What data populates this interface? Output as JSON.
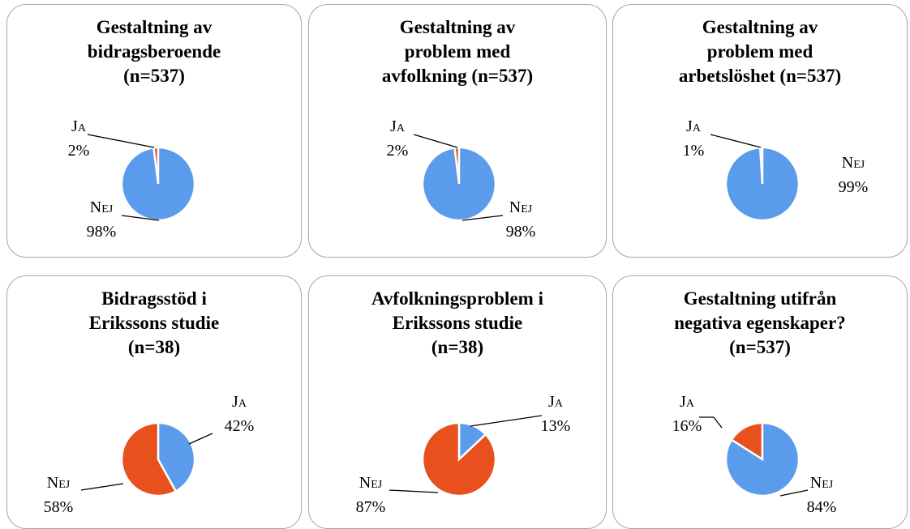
{
  "chart_data": [
    {
      "type": "pie",
      "title": "Gestaltning av\nbidragsberoende\n(n=537)",
      "categories": [
        "Ja",
        "Nej"
      ],
      "values": [
        2,
        98
      ],
      "value_labels": [
        "2%",
        "98%"
      ],
      "colors": [
        "#e8501e",
        "#5b9bec"
      ]
    },
    {
      "type": "pie",
      "title": "Gestaltning av\nproblem med\navfolkning (n=537)",
      "categories": [
        "Ja",
        "Nej"
      ],
      "values": [
        2,
        98
      ],
      "value_labels": [
        "2%",
        "98%"
      ],
      "colors": [
        "#e8501e",
        "#5b9bec"
      ]
    },
    {
      "type": "pie",
      "title": "Gestaltning av\nproblem med\narbetslöshet (n=537)",
      "categories": [
        "Ja",
        "Nej"
      ],
      "values": [
        1,
        99
      ],
      "value_labels": [
        "1%",
        "99%"
      ],
      "colors": [
        "#e8501e",
        "#5b9bec"
      ]
    },
    {
      "type": "pie",
      "title": "Bidragsstöd i\nErikssons studie\n(n=38)",
      "categories": [
        "Ja",
        "Nej"
      ],
      "values": [
        42,
        58
      ],
      "value_labels": [
        "42%",
        "58%"
      ],
      "colors": [
        "#5b9bec",
        "#e8501e"
      ]
    },
    {
      "type": "pie",
      "title": "Avfolkningsproblem i\nErikssons studie\n(n=38)",
      "categories": [
        "Ja",
        "Nej"
      ],
      "values": [
        13,
        87
      ],
      "value_labels": [
        "13%",
        "87%"
      ],
      "colors": [
        "#5b9bec",
        "#e8501e"
      ]
    },
    {
      "type": "pie",
      "title": "Gestaltning utifrån\nnegativa egenskaper?\n(n=537)",
      "categories": [
        "Ja",
        "Nej"
      ],
      "values": [
        16,
        84
      ],
      "value_labels": [
        "16%",
        "84%"
      ],
      "colors": [
        "#e8501e",
        "#5b9bec"
      ]
    }
  ]
}
